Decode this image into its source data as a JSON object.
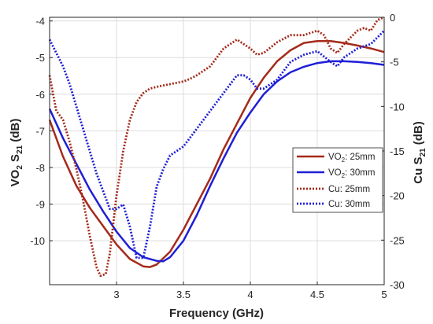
{
  "chart_data": {
    "type": "line",
    "xlabel": "Frequency (GHz)",
    "ylabel_left": {
      "main": "VO",
      "sub1": "2",
      "mid": " S",
      "sub2": "21",
      "unit": " (dB)"
    },
    "ylabel_right": {
      "main": "Cu S",
      "sub": "21",
      "unit": " (dB)"
    },
    "xlim": [
      2.5,
      5
    ],
    "ylim_left": [
      -11.2,
      -3.9
    ],
    "ylim_right": [
      -30,
      0
    ],
    "x_ticks": [
      "3",
      "3.5",
      "4",
      "4.5",
      "5"
    ],
    "y_ticks_left": [
      "-4",
      "-5",
      "-6",
      "-7",
      "-8",
      "-9",
      "-10"
    ],
    "y_ticks_right": [
      "0",
      "-5",
      "-10",
      "-15",
      "-20",
      "-25",
      "-30"
    ],
    "grid": true,
    "legend_position": "center-right",
    "series": [
      {
        "name": "VO2: 25mm",
        "legend": {
          "main": "VO",
          "sub": "2",
          "rest": ": 25mm"
        },
        "axis": "left",
        "style": "solid",
        "color": "#a52a1a",
        "x": [
          2.5,
          2.6,
          2.7,
          2.8,
          2.9,
          3.0,
          3.1,
          3.2,
          3.25,
          3.3,
          3.4,
          3.5,
          3.6,
          3.7,
          3.8,
          3.9,
          4.0,
          4.1,
          4.2,
          4.3,
          4.4,
          4.5,
          4.6,
          4.7,
          4.8,
          4.9,
          5.0
        ],
        "y": [
          -6.7,
          -7.7,
          -8.5,
          -9.1,
          -9.6,
          -10.1,
          -10.5,
          -10.7,
          -10.72,
          -10.65,
          -10.3,
          -9.7,
          -9.0,
          -8.3,
          -7.5,
          -6.8,
          -6.1,
          -5.55,
          -5.1,
          -4.8,
          -4.6,
          -4.55,
          -4.55,
          -4.6,
          -4.67,
          -4.75,
          -4.85
        ]
      },
      {
        "name": "VO2: 30mm",
        "legend": {
          "main": "VO",
          "sub": "2",
          "rest": ": 30mm"
        },
        "axis": "left",
        "style": "solid",
        "color": "#1f1fd6",
        "x": [
          2.5,
          2.6,
          2.7,
          2.8,
          2.9,
          3.0,
          3.1,
          3.2,
          3.3,
          3.35,
          3.4,
          3.5,
          3.6,
          3.7,
          3.8,
          3.9,
          4.0,
          4.1,
          4.2,
          4.3,
          4.4,
          4.5,
          4.6,
          4.7,
          4.8,
          4.9,
          5.0
        ],
        "y": [
          -6.4,
          -7.2,
          -7.9,
          -8.6,
          -9.2,
          -9.75,
          -10.2,
          -10.45,
          -10.55,
          -10.56,
          -10.45,
          -10.0,
          -9.3,
          -8.5,
          -7.75,
          -7.05,
          -6.5,
          -6.0,
          -5.65,
          -5.4,
          -5.25,
          -5.15,
          -5.1,
          -5.1,
          -5.12,
          -5.15,
          -5.2
        ]
      },
      {
        "name": "Cu: 25mm",
        "legend": {
          "main": "Cu: 25mm",
          "sub": "",
          "rest": ""
        },
        "axis": "right",
        "style": "dotted",
        "color": "#a52a1a",
        "x": [
          2.5,
          2.55,
          2.6,
          2.65,
          2.7,
          2.75,
          2.8,
          2.85,
          2.88,
          2.92,
          2.95,
          3.0,
          3.05,
          3.1,
          3.15,
          3.2,
          3.25,
          3.3,
          3.4,
          3.5,
          3.55,
          3.6,
          3.7,
          3.75,
          3.8,
          3.9,
          4.0,
          4.05,
          4.1,
          4.2,
          4.3,
          4.4,
          4.5,
          4.55,
          4.6,
          4.65,
          4.7,
          4.8,
          4.85,
          4.9,
          4.95,
          5.0
        ],
        "y": [
          -6.5,
          -10.5,
          -11.5,
          -14.0,
          -17.0,
          -20.5,
          -24.5,
          -28.0,
          -29.0,
          -28.8,
          -26.5,
          -20.0,
          -15.0,
          -11.5,
          -9.5,
          -8.5,
          -8.0,
          -7.8,
          -7.5,
          -7.2,
          -6.9,
          -6.5,
          -5.5,
          -4.5,
          -3.5,
          -2.5,
          -3.5,
          -4.2,
          -4.0,
          -2.8,
          -2.0,
          -2.0,
          -1.5,
          -2.0,
          -3.5,
          -4.0,
          -3.0,
          -1.5,
          -1.2,
          -1.5,
          -0.3,
          0.0
        ]
      },
      {
        "name": "Cu: 30mm",
        "legend": {
          "main": "Cu: 30mm",
          "sub": "",
          "rest": ""
        },
        "axis": "right",
        "style": "dotted",
        "color": "#1f1fd6",
        "x": [
          2.5,
          2.55,
          2.6,
          2.65,
          2.7,
          2.75,
          2.8,
          2.85,
          2.9,
          2.95,
          3.0,
          3.05,
          3.1,
          3.15,
          3.2,
          3.25,
          3.3,
          3.35,
          3.4,
          3.5,
          3.6,
          3.7,
          3.8,
          3.85,
          3.9,
          3.95,
          4.0,
          4.05,
          4.1,
          4.2,
          4.3,
          4.4,
          4.5,
          4.6,
          4.65,
          4.7,
          4.8,
          4.9,
          5.0
        ],
        "y": [
          -2.5,
          -4.0,
          -5.5,
          -7.5,
          -10.0,
          -12.5,
          -15.0,
          -17.5,
          -19.5,
          -21.5,
          -21.5,
          -21.0,
          -23.5,
          -27.0,
          -27.0,
          -23.5,
          -19.0,
          -17.0,
          -15.5,
          -14.5,
          -12.5,
          -10.5,
          -8.5,
          -7.5,
          -6.5,
          -6.5,
          -7.0,
          -8.0,
          -8.0,
          -7.0,
          -5.0,
          -4.2,
          -3.8,
          -5.0,
          -5.5,
          -4.5,
          -3.5,
          -3.0,
          -1.5
        ]
      }
    ]
  }
}
